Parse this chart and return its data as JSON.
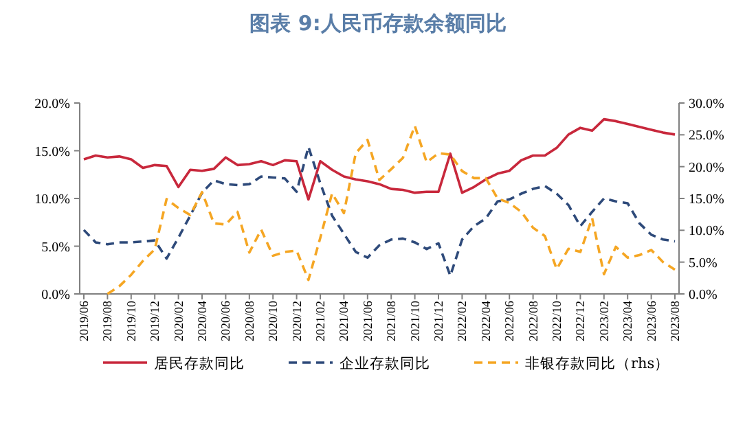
{
  "chart_data": {
    "type": "line",
    "title": "图表 9:人民币存款余额同比",
    "categories": [
      "2019/06",
      null,
      "2019/08",
      null,
      "2019/10",
      null,
      "2019/12",
      null,
      "2020/02",
      null,
      "2020/04",
      null,
      "2020/06",
      null,
      "2020/08",
      null,
      "2020/10",
      null,
      "2020/12",
      null,
      "2021/02",
      null,
      "2021/04",
      null,
      "2021/06",
      null,
      "2021/08",
      null,
      "2021/10",
      null,
      "2021/12",
      null,
      "2022/02",
      null,
      "2022/04",
      null,
      "2022/06",
      null,
      "2022/08",
      null,
      "2022/10",
      null,
      "2022/12",
      null,
      "2023/02",
      null,
      "2023/04",
      null,
      "2023/06",
      null,
      "2023/08"
    ],
    "series": [
      {
        "name": "居民存款同比",
        "color": "#c8283c",
        "line_style": "solid",
        "values": [
          14.1,
          14.5,
          14.3,
          14.4,
          14.1,
          13.2,
          13.5,
          13.4,
          11.2,
          13.0,
          12.9,
          13.1,
          14.3,
          13.5,
          13.6,
          13.9,
          13.5,
          14.0,
          13.9,
          9.9,
          13.9,
          13.0,
          12.3,
          12.0,
          11.8,
          11.5,
          11.0,
          10.9,
          10.6,
          10.7,
          10.7,
          14.7,
          10.6,
          11.2,
          12.0,
          12.6,
          12.9,
          14.0,
          14.5,
          14.5,
          15.3,
          16.7,
          17.4,
          17.1,
          18.3,
          18.1,
          17.8,
          17.5,
          17.2,
          16.9,
          16.7
        ]
      },
      {
        "name": "企业存款同比",
        "color": "#2e4a7a",
        "line_style": "dashed",
        "values": [
          6.7,
          5.4,
          5.2,
          5.4,
          5.4,
          5.5,
          5.6,
          3.7,
          5.9,
          8.2,
          10.6,
          11.9,
          11.5,
          11.4,
          11.5,
          12.3,
          12.2,
          12.1,
          10.7,
          15.4,
          11.6,
          8.2,
          6.3,
          4.4,
          3.8,
          5.1,
          5.7,
          5.8,
          5.4,
          4.7,
          5.3,
          1.9,
          5.7,
          7.1,
          7.9,
          9.7,
          9.9,
          10.5,
          11.0,
          11.3,
          10.5,
          9.3,
          7.1,
          8.6,
          10.0,
          9.7,
          9.5,
          7.4,
          6.2,
          5.7,
          5.5
        ]
      },
      {
        "name": "非银存款同比（rhs）",
        "color": "#f5a623",
        "line_style": "dashed",
        "axis": "y2",
        "values": [
          null,
          null,
          0,
          1.2,
          3.0,
          5.2,
          7.0,
          14.9,
          13.5,
          12.4,
          16.0,
          11.1,
          10.9,
          12.9,
          6.5,
          10.1,
          6.0,
          6.6,
          6.8,
          2.2,
          8.8,
          15.8,
          12.7,
          22.1,
          24.2,
          17.9,
          19.6,
          21.4,
          26.4,
          20.7,
          22.1,
          21.9,
          19.3,
          18.2,
          18.2,
          15.0,
          14.3,
          12.9,
          10.4,
          9.1,
          3.9,
          7.1,
          6.6,
          11.9,
          3.1,
          7.4,
          5.7,
          6.1,
          6.9,
          5.0,
          3.8
        ]
      }
    ],
    "ylim": [
      0,
      20
    ],
    "yticks": [
      {
        "value": 0,
        "label": "0.0%"
      },
      {
        "value": 5,
        "label": "5.0%"
      },
      {
        "value": 10,
        "label": "10.0%"
      },
      {
        "value": 15,
        "label": "15.0%"
      },
      {
        "value": 20,
        "label": "20.0%"
      }
    ],
    "y2lim": [
      0,
      30
    ],
    "y2ticks": [
      {
        "value": 0,
        "label": "0.0%"
      },
      {
        "value": 5,
        "label": "5.0%"
      },
      {
        "value": 10,
        "label": "10.0%"
      },
      {
        "value": 15,
        "label": "15.0%"
      },
      {
        "value": 20,
        "label": "20.0%"
      },
      {
        "value": 25,
        "label": "25.0%"
      },
      {
        "value": 30,
        "label": "30.0%"
      }
    ],
    "legend": "bottom"
  }
}
